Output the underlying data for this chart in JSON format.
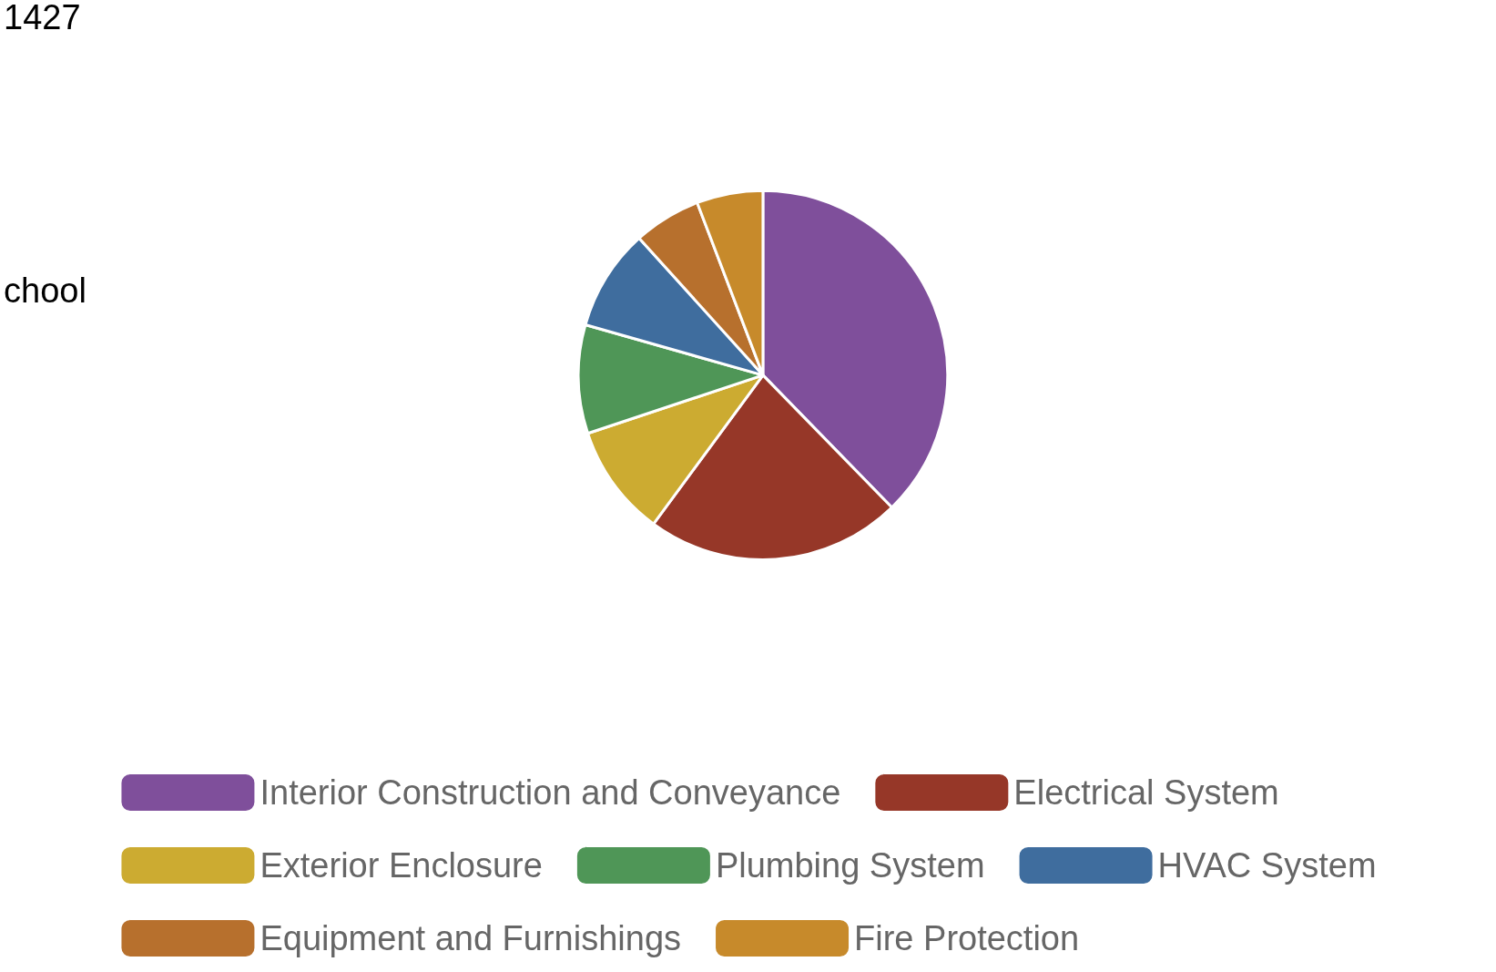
{
  "chart_data": {
    "type": "pie",
    "categories": [
      "Interior Construction and Conveyance",
      "Electrical System",
      "Exterior Enclosure",
      "Plumbing System",
      "HVAC System",
      "Equipment and Furnishings",
      "Fire Protection"
    ],
    "values": [
      37.7,
      22.4,
      9.8,
      9.5,
      8.9,
      5.9,
      5.8
    ],
    "colors": [
      "#7f4f9b",
      "#963728",
      "#ccab31",
      "#4f9657",
      "#3f6d9e",
      "#b7702d",
      "#c78a2b"
    ],
    "legend": "bottom",
    "annotations": [
      "1427",
      "chool"
    ]
  }
}
